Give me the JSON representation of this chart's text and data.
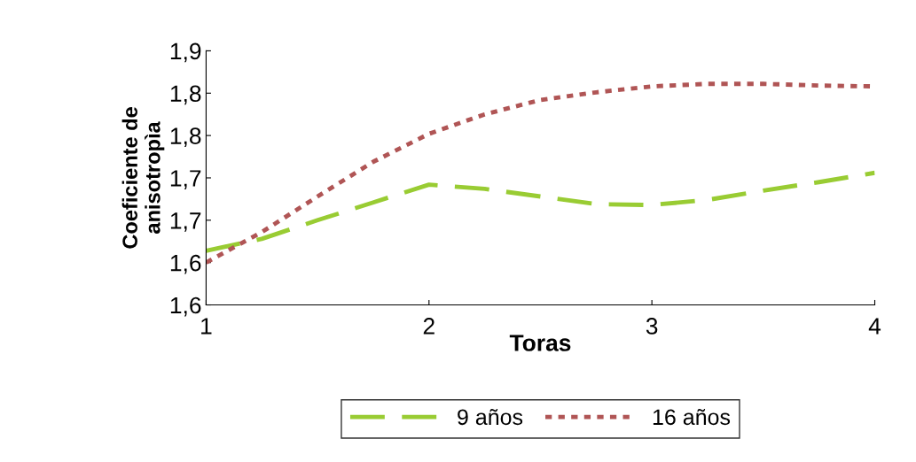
{
  "chart_data": {
    "type": "line",
    "xlabel": "Toras",
    "ylabel": "Coeficiente de\nanisotropìa",
    "x": [
      1,
      1.25,
      1.5,
      1.75,
      2,
      2.25,
      2.5,
      2.75,
      3,
      3.25,
      3.5,
      3.75,
      4
    ],
    "series": [
      {
        "name": "9 años",
        "color": "#99cc33",
        "line_style": "dashed",
        "values": [
          1.664,
          1.678,
          1.7,
          1.721,
          1.742,
          1.737,
          1.728,
          1.719,
          1.718,
          1.724,
          1.735,
          1.745,
          1.756
        ]
      },
      {
        "name": "16 años",
        "color": "#b05555",
        "line_style": "dotted",
        "values": [
          1.65,
          1.686,
          1.728,
          1.769,
          1.802,
          1.825,
          1.842,
          1.851,
          1.858,
          1.861,
          1.861,
          1.859,
          1.858
        ]
      }
    ],
    "xlim": [
      1,
      4
    ],
    "xticks": [
      1,
      2,
      3,
      4
    ],
    "ylim": [
      1.6,
      1.9
    ],
    "yticks": [
      {
        "value": 1.6,
        "label": "1,6"
      },
      {
        "value": 1.65,
        "label": "1,6"
      },
      {
        "value": 1.7,
        "label": "1,7"
      },
      {
        "value": 1.75,
        "label": "1,7"
      },
      {
        "value": 1.8,
        "label": "1,8"
      },
      {
        "value": 1.85,
        "label": "1,8"
      },
      {
        "value": 1.9,
        "label": "1,9"
      }
    ],
    "grid": false,
    "legend": "bottom",
    "marker": "none"
  }
}
